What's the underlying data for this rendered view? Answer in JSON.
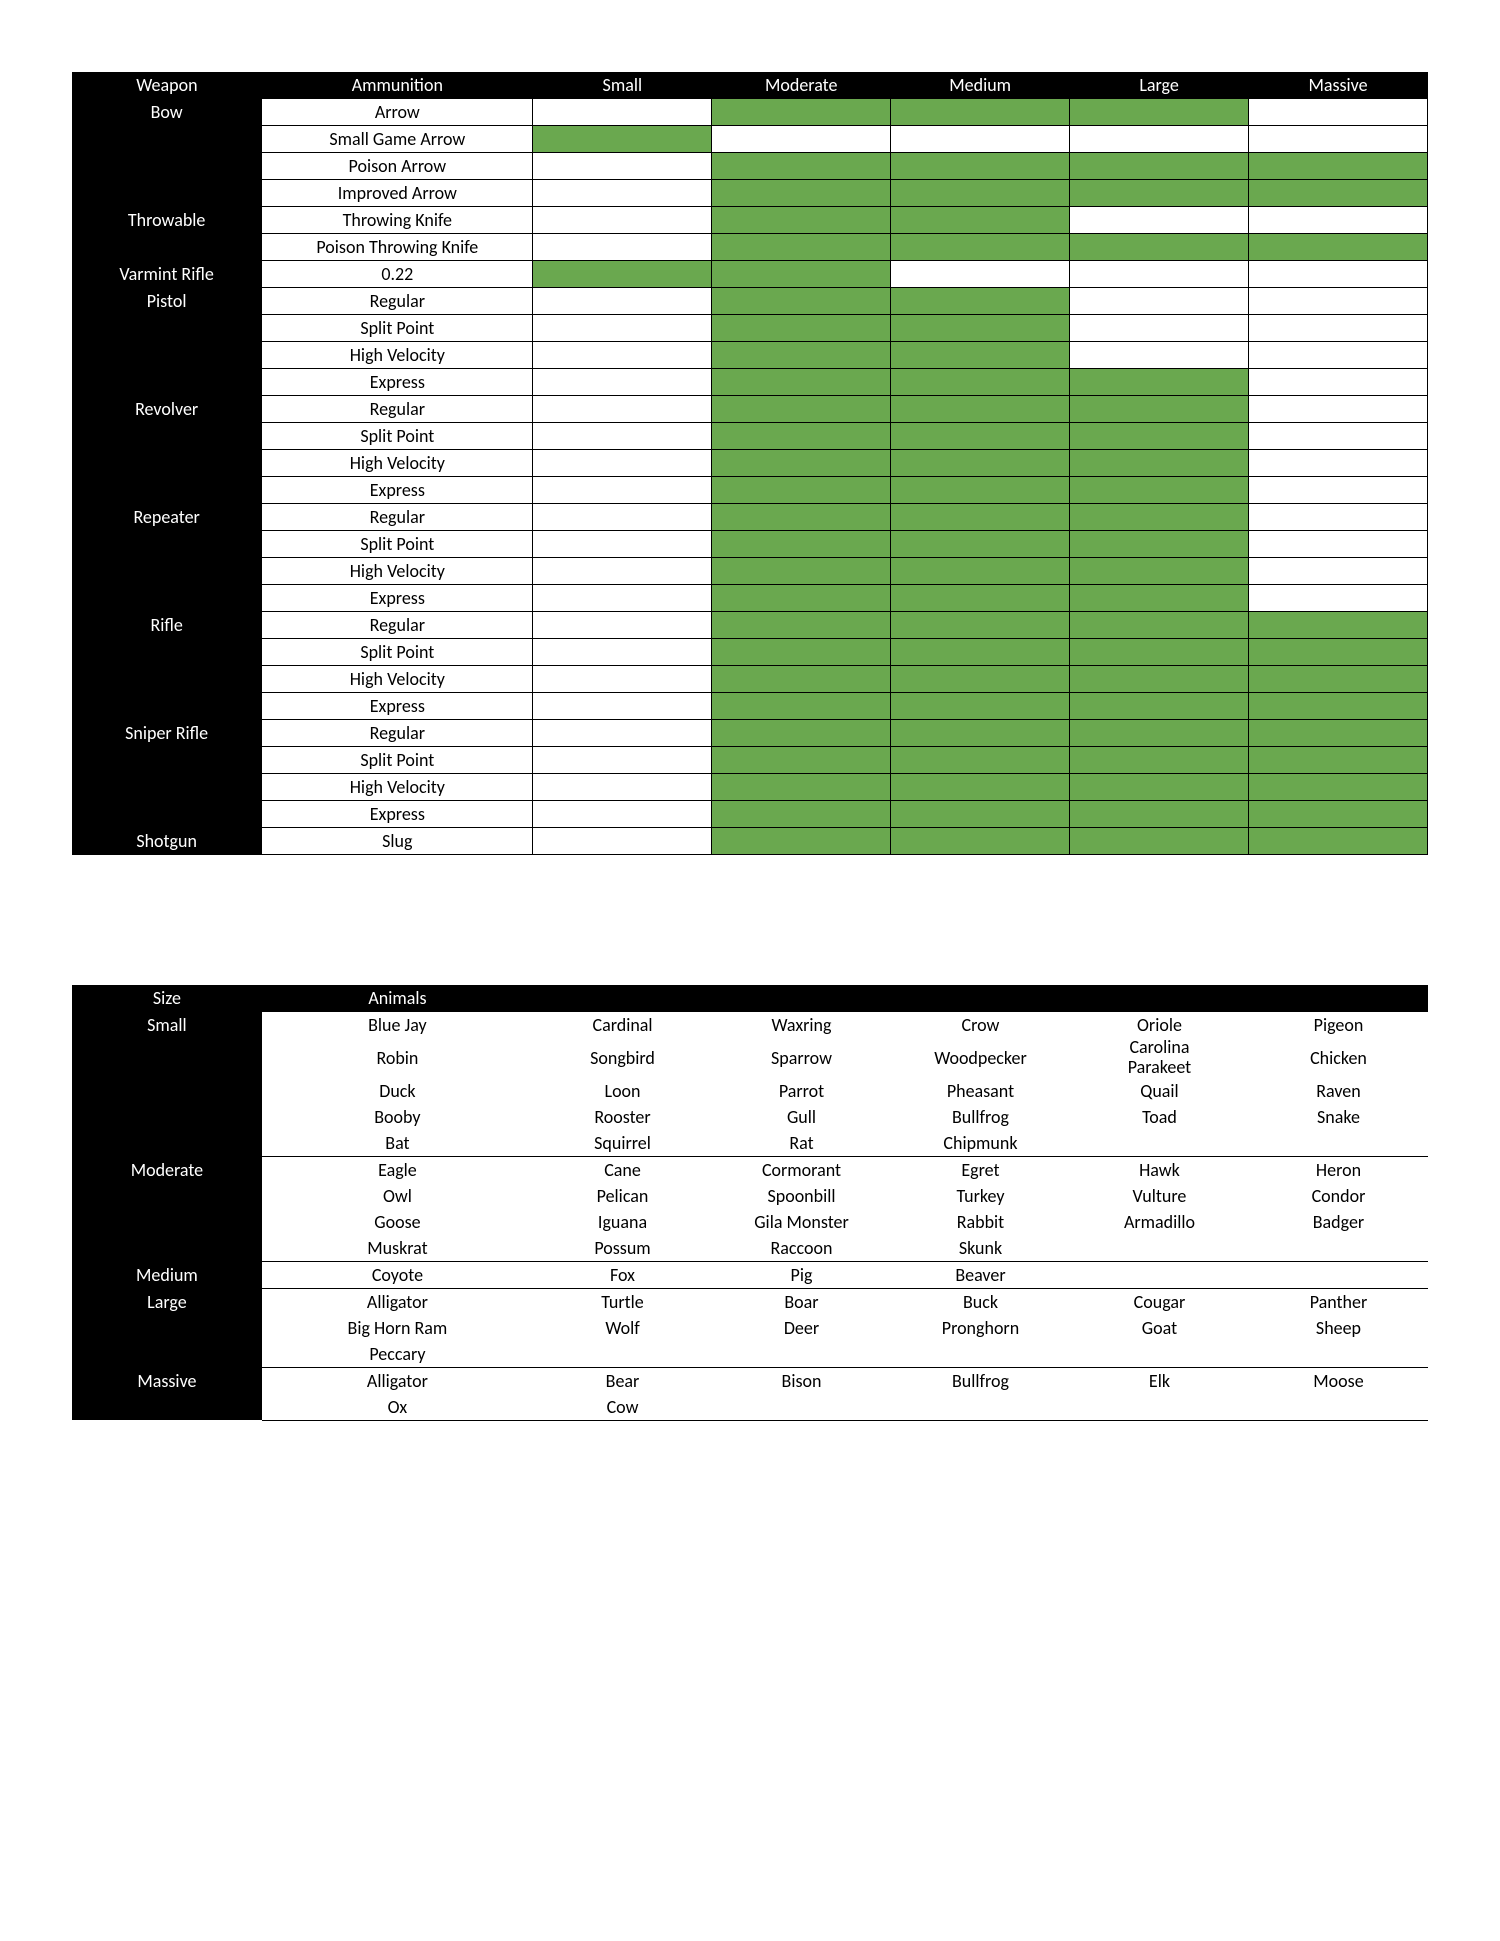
{
  "colors": {
    "background": "#ffffff",
    "header_bg": "#000000",
    "header_fg": "#ffffff",
    "cell_bg": "#ffffff",
    "cell_green": "#6aa84f",
    "border": "#000000"
  },
  "weapons_table": {
    "type": "table",
    "col_widths_pct": [
      14,
      20,
      13.2,
      13.2,
      13.2,
      13.2,
      13.2
    ],
    "headers": [
      "Weapon",
      "Ammunition",
      "Small",
      "Moderate",
      "Medium",
      "Large",
      "Massive"
    ],
    "groups": [
      {
        "weapon": "Bow",
        "ammo": [
          {
            "name": "Arrow",
            "sizes": [
              0,
              1,
              1,
              1,
              0
            ]
          },
          {
            "name": "Small Game Arrow",
            "sizes": [
              1,
              0,
              0,
              0,
              0
            ]
          },
          {
            "name": "Poison Arrow",
            "sizes": [
              0,
              1,
              1,
              1,
              1
            ]
          },
          {
            "name": "Improved Arrow",
            "sizes": [
              0,
              1,
              1,
              1,
              1
            ]
          }
        ]
      },
      {
        "weapon": "Throwable",
        "ammo": [
          {
            "name": "Throwing Knife",
            "sizes": [
              0,
              1,
              1,
              0,
              0
            ]
          },
          {
            "name": "Poison Throwing Knife",
            "sizes": [
              0,
              1,
              1,
              1,
              1
            ]
          }
        ]
      },
      {
        "weapon": "Varmint Rifle",
        "ammo": [
          {
            "name": "0.22",
            "sizes": [
              1,
              1,
              0,
              0,
              0
            ]
          }
        ]
      },
      {
        "weapon": "Pistol",
        "ammo": [
          {
            "name": "Regular",
            "sizes": [
              0,
              1,
              1,
              0,
              0
            ]
          },
          {
            "name": "Split Point",
            "sizes": [
              0,
              1,
              1,
              0,
              0
            ]
          },
          {
            "name": "High Velocity",
            "sizes": [
              0,
              1,
              1,
              0,
              0
            ]
          },
          {
            "name": "Express",
            "sizes": [
              0,
              1,
              1,
              1,
              0
            ]
          }
        ]
      },
      {
        "weapon": "Revolver",
        "ammo": [
          {
            "name": "Regular",
            "sizes": [
              0,
              1,
              1,
              1,
              0
            ]
          },
          {
            "name": "Split Point",
            "sizes": [
              0,
              1,
              1,
              1,
              0
            ]
          },
          {
            "name": "High Velocity",
            "sizes": [
              0,
              1,
              1,
              1,
              0
            ]
          },
          {
            "name": "Express",
            "sizes": [
              0,
              1,
              1,
              1,
              0
            ]
          }
        ]
      },
      {
        "weapon": "Repeater",
        "ammo": [
          {
            "name": "Regular",
            "sizes": [
              0,
              1,
              1,
              1,
              0
            ]
          },
          {
            "name": "Split Point",
            "sizes": [
              0,
              1,
              1,
              1,
              0
            ]
          },
          {
            "name": "High Velocity",
            "sizes": [
              0,
              1,
              1,
              1,
              0
            ]
          },
          {
            "name": "Express",
            "sizes": [
              0,
              1,
              1,
              1,
              0
            ]
          }
        ]
      },
      {
        "weapon": "Rifle",
        "ammo": [
          {
            "name": "Regular",
            "sizes": [
              0,
              1,
              1,
              1,
              1
            ]
          },
          {
            "name": "Split Point",
            "sizes": [
              0,
              1,
              1,
              1,
              1
            ]
          },
          {
            "name": "High Velocity",
            "sizes": [
              0,
              1,
              1,
              1,
              1
            ]
          },
          {
            "name": "Express",
            "sizes": [
              0,
              1,
              1,
              1,
              1
            ]
          }
        ]
      },
      {
        "weapon": "Sniper Rifle",
        "ammo": [
          {
            "name": "Regular",
            "sizes": [
              0,
              1,
              1,
              1,
              1
            ]
          },
          {
            "name": "Split Point",
            "sizes": [
              0,
              1,
              1,
              1,
              1
            ]
          },
          {
            "name": "High Velocity",
            "sizes": [
              0,
              1,
              1,
              1,
              1
            ]
          },
          {
            "name": "Express",
            "sizes": [
              0,
              1,
              1,
              1,
              1
            ]
          }
        ]
      },
      {
        "weapon": "Shotgun",
        "ammo": [
          {
            "name": "Slug",
            "sizes": [
              0,
              1,
              1,
              1,
              1
            ]
          }
        ]
      }
    ]
  },
  "animals_table": {
    "type": "table",
    "col_widths_pct": [
      14,
      20,
      13.2,
      13.2,
      13.2,
      13.2,
      13.2
    ],
    "headers": [
      "Size",
      "Animals",
      "",
      "",
      "",
      "",
      ""
    ],
    "groups": [
      {
        "size": "Small",
        "rows": [
          [
            "Blue Jay",
            "Cardinal",
            "Waxring",
            "Crow",
            "Oriole",
            "Pigeon"
          ],
          [
            "Robin",
            "Songbird",
            "Sparrow",
            "Woodpecker",
            "Carolina Parakeet",
            "Chicken"
          ],
          [
            "Duck",
            "Loon",
            "Parrot",
            "Pheasant",
            "Quail",
            "Raven"
          ],
          [
            "Booby",
            "Rooster",
            "Gull",
            "Bullfrog",
            "Toad",
            "Snake"
          ],
          [
            "Bat",
            "Squirrel",
            "Rat",
            "Chipmunk",
            "",
            ""
          ]
        ]
      },
      {
        "size": "Moderate",
        "rows": [
          [
            "Eagle",
            "Cane",
            "Cormorant",
            "Egret",
            "Hawk",
            "Heron"
          ],
          [
            "Owl",
            "Pelican",
            "Spoonbill",
            "Turkey",
            "Vulture",
            "Condor"
          ],
          [
            "Goose",
            "Iguana",
            "Gila Monster",
            "Rabbit",
            "Armadillo",
            "Badger"
          ],
          [
            "Muskrat",
            "Possum",
            "Raccoon",
            "Skunk",
            "",
            ""
          ]
        ]
      },
      {
        "size": "Medium",
        "rows": [
          [
            "Coyote",
            "Fox",
            "Pig",
            "Beaver",
            "",
            ""
          ]
        ]
      },
      {
        "size": "Large",
        "rows": [
          [
            "Alligator",
            "Turtle",
            "Boar",
            "Buck",
            "Cougar",
            "Panther"
          ],
          [
            "Big Horn Ram",
            "Wolf",
            "Deer",
            "Pronghorn",
            "Goat",
            "Sheep"
          ],
          [
            "Peccary",
            "",
            "",
            "",
            "",
            ""
          ]
        ]
      },
      {
        "size": "Massive",
        "rows": [
          [
            "Alligator",
            "Bear",
            "Bison",
            "Bullfrog",
            "Elk",
            "Moose"
          ],
          [
            "Ox",
            "Cow",
            "",
            "",
            "",
            ""
          ]
        ]
      }
    ]
  }
}
